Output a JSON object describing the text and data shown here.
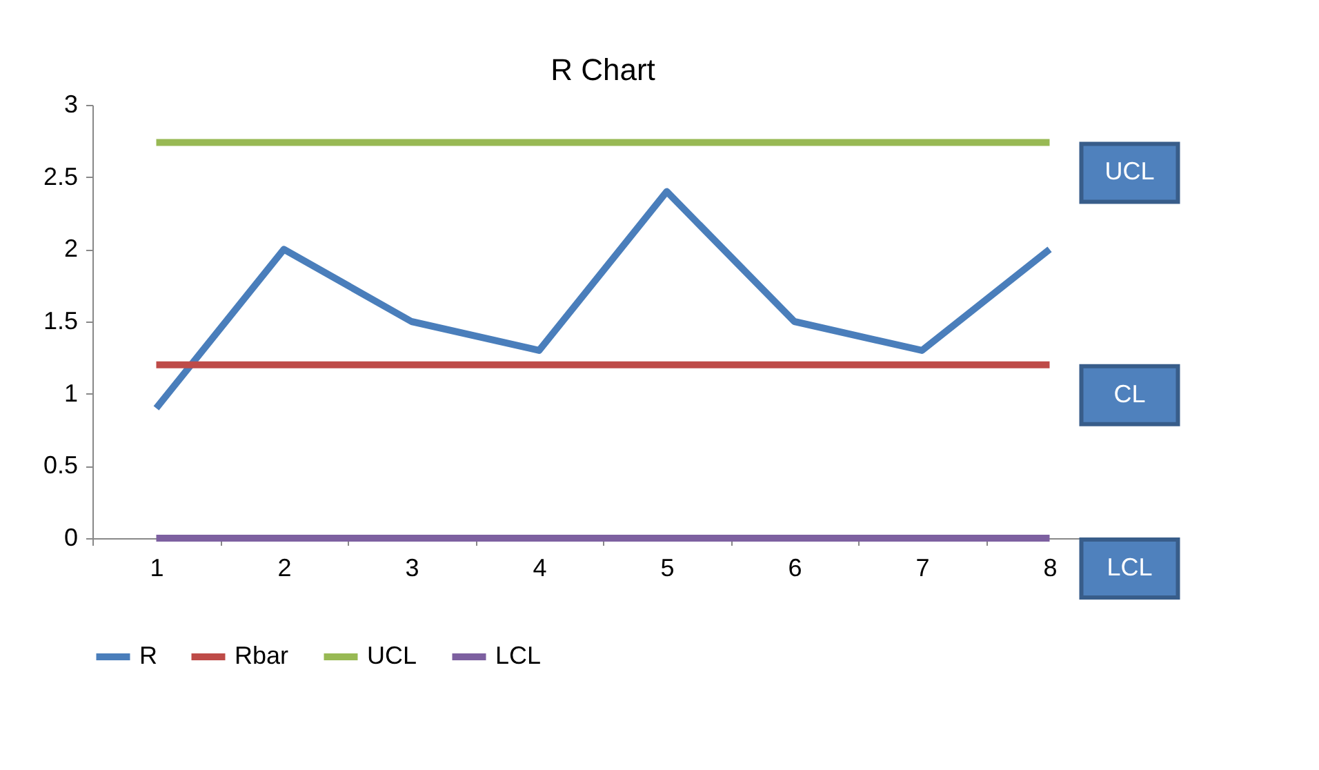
{
  "chart_data": {
    "type": "line",
    "title": "R Chart",
    "categories": [
      "1",
      "2",
      "3",
      "4",
      "5",
      "6",
      "7",
      "8"
    ],
    "series": [
      {
        "name": "R",
        "color": "#4a7ebb",
        "values": [
          0.9,
          2,
          1.5,
          1.3,
          2.4,
          1.5,
          1.3,
          2
        ]
      },
      {
        "name": "Rbar",
        "color": "#be4b48",
        "values": [
          1.2,
          1.2,
          1.2,
          1.2,
          1.2,
          1.2,
          1.2,
          1.2
        ]
      },
      {
        "name": "UCL",
        "color": "#98b954",
        "values": [
          2.74,
          2.74,
          2.74,
          2.74,
          2.74,
          2.74,
          2.74,
          2.74
        ]
      },
      {
        "name": "LCL",
        "color": "#7d60a0",
        "values": [
          0,
          0,
          0,
          0,
          0,
          0,
          0,
          0
        ]
      }
    ],
    "ylim": [
      0,
      3
    ],
    "yticks": [
      0,
      0.5,
      1,
      1.5,
      2,
      2.5,
      3
    ],
    "annotations": [
      {
        "text": "UCL",
        "x": "8",
        "y": 2.74
      },
      {
        "text": "CL",
        "x": "8",
        "y": 1.2
      },
      {
        "text": "LCL",
        "x": "8",
        "y": 0
      }
    ],
    "grid": false,
    "legend": "bottom",
    "marker": "none",
    "line_style": "solid"
  }
}
